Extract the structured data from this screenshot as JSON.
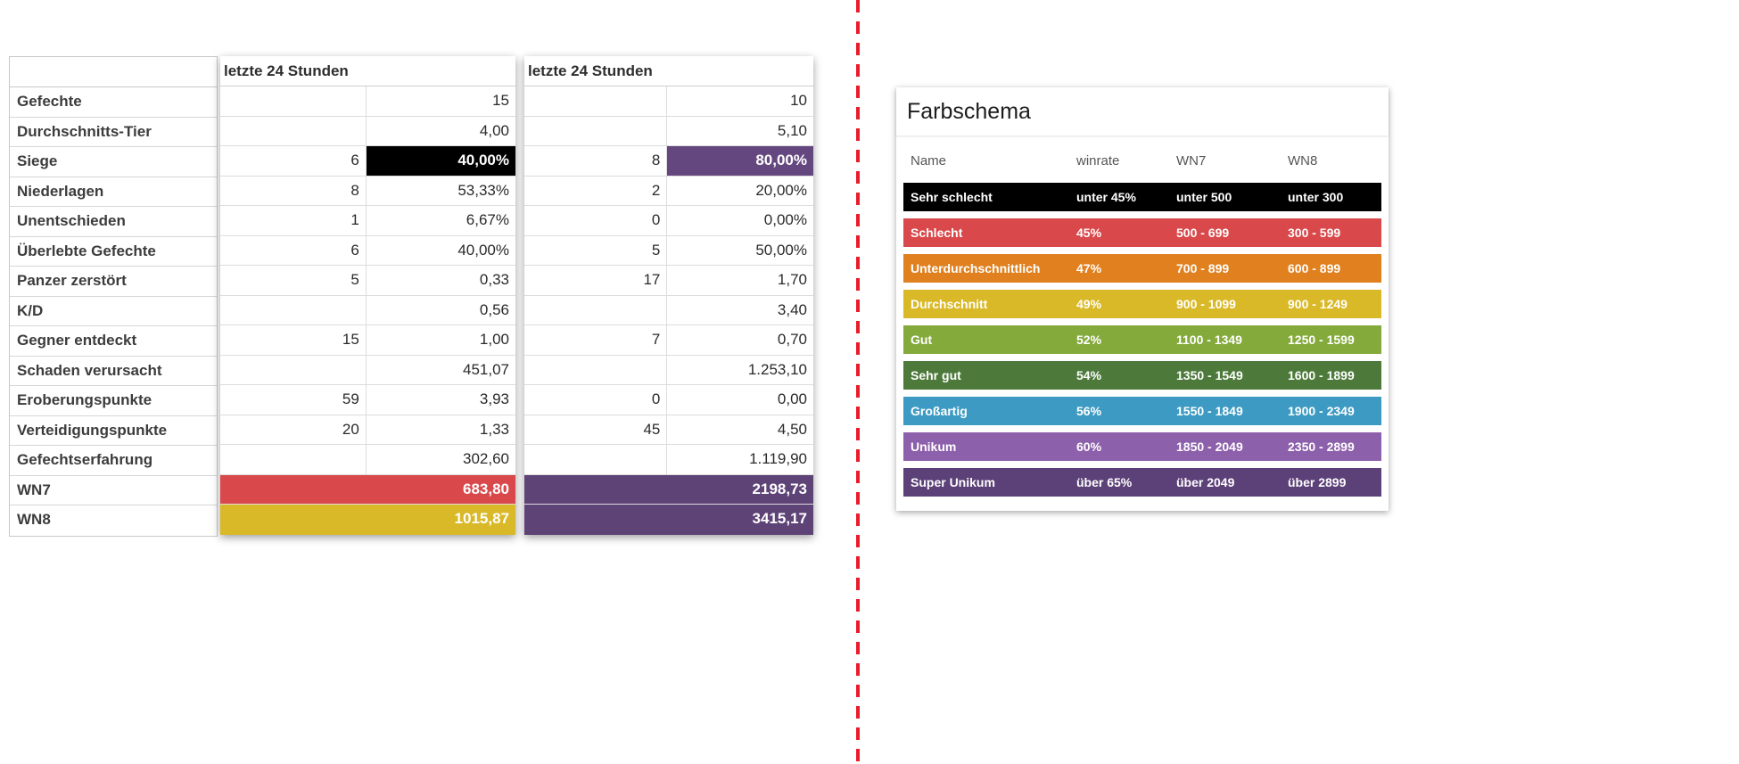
{
  "stats": {
    "row_labels": [
      "Gefechte",
      "Durchschnitts-Tier",
      "Siege",
      "Niederlagen",
      "Unentschieden",
      "Überlebte Gefechte",
      "Panzer zerstört",
      "K/D",
      "Gegner entdeckt",
      "Schaden verursacht",
      "Eroberungspunkte",
      "Verteidigungspunkte",
      "Gefechtserfahrung",
      "WN7",
      "WN8"
    ],
    "period1": {
      "header": "letzte 24 Stunden",
      "rows": [
        {
          "count": "",
          "value": "15"
        },
        {
          "count": "",
          "value": "4,00"
        },
        {
          "count": "6",
          "value": "40,00%",
          "bg": "#000000",
          "fg": "#ffffff"
        },
        {
          "count": "8",
          "value": "53,33%"
        },
        {
          "count": "1",
          "value": "6,67%"
        },
        {
          "count": "6",
          "value": "40,00%"
        },
        {
          "count": "5",
          "value": "0,33"
        },
        {
          "count": "",
          "value": "0,56"
        },
        {
          "count": "15",
          "value": "1,00"
        },
        {
          "count": "",
          "value": "451,07"
        },
        {
          "count": "59",
          "value": "3,93"
        },
        {
          "count": "20",
          "value": "1,33"
        },
        {
          "count": "",
          "value": "302,60"
        },
        {
          "full": true,
          "value": "683,80",
          "bg": "#d9484a",
          "fg": "#ffffff"
        },
        {
          "full": true,
          "value": "1015,87",
          "bg": "#d9b928",
          "fg": "#ffffff"
        }
      ]
    },
    "period2": {
      "header": "letzte 24 Stunden",
      "rows": [
        {
          "count": "",
          "value": "10"
        },
        {
          "count": "",
          "value": "5,10"
        },
        {
          "count": "8",
          "value": "80,00%",
          "bg": "#65477f",
          "fg": "#ffffff"
        },
        {
          "count": "2",
          "value": "20,00%"
        },
        {
          "count": "0",
          "value": "0,00%"
        },
        {
          "count": "5",
          "value": "50,00%"
        },
        {
          "count": "17",
          "value": "1,70"
        },
        {
          "count": "",
          "value": "3,40"
        },
        {
          "count": "7",
          "value": "0,70"
        },
        {
          "count": "",
          "value": "1.253,10"
        },
        {
          "count": "0",
          "value": "0,00"
        },
        {
          "count": "45",
          "value": "4,50"
        },
        {
          "count": "",
          "value": "1.119,90"
        },
        {
          "full": true,
          "value": "2198,73",
          "bg": "#5e4377",
          "fg": "#ffffff"
        },
        {
          "full": true,
          "value": "3415,17",
          "bg": "#5e4377",
          "fg": "#ffffff"
        }
      ]
    }
  },
  "divider_color": "#e81c2a",
  "farbschema": {
    "title": "Farbschema",
    "headers": [
      "Name",
      "winrate",
      "WN7",
      "WN8"
    ],
    "rows": [
      {
        "name": "Sehr schlecht",
        "winrate": "unter 45%",
        "wn7": "unter 500",
        "wn8": "unter 300",
        "color": "#000000"
      },
      {
        "name": "Schlecht",
        "winrate": "45%",
        "wn7": "500 - 699",
        "wn8": "300 - 599",
        "color": "#d9484a"
      },
      {
        "name": "Unterdurchschnittlich",
        "winrate": "47%",
        "wn7": "700 - 899",
        "wn8": "600 - 899",
        "color": "#e0801f"
      },
      {
        "name": "Durchschnitt",
        "winrate": "49%",
        "wn7": "900 - 1099",
        "wn8": "900 - 1249",
        "color": "#d9b928"
      },
      {
        "name": "Gut",
        "winrate": "52%",
        "wn7": "1100 - 1349",
        "wn8": "1250 - 1599",
        "color": "#84aa3c"
      },
      {
        "name": "Sehr gut",
        "winrate": "54%",
        "wn7": "1350 - 1549",
        "wn8": "1600 - 1899",
        "color": "#4d7a3a"
      },
      {
        "name": "Großartig",
        "winrate": "56%",
        "wn7": "1550 - 1849",
        "wn8": "1900 - 2349",
        "color": "#3d9bc3"
      },
      {
        "name": "Unikum",
        "winrate": "60%",
        "wn7": "1850 - 2049",
        "wn8": "2350 - 2899",
        "color": "#8d60ab"
      },
      {
        "name": "Super Unikum",
        "winrate": "über 65%",
        "wn7": "über 2049",
        "wn8": "über 2899",
        "color": "#5c4078"
      }
    ]
  }
}
